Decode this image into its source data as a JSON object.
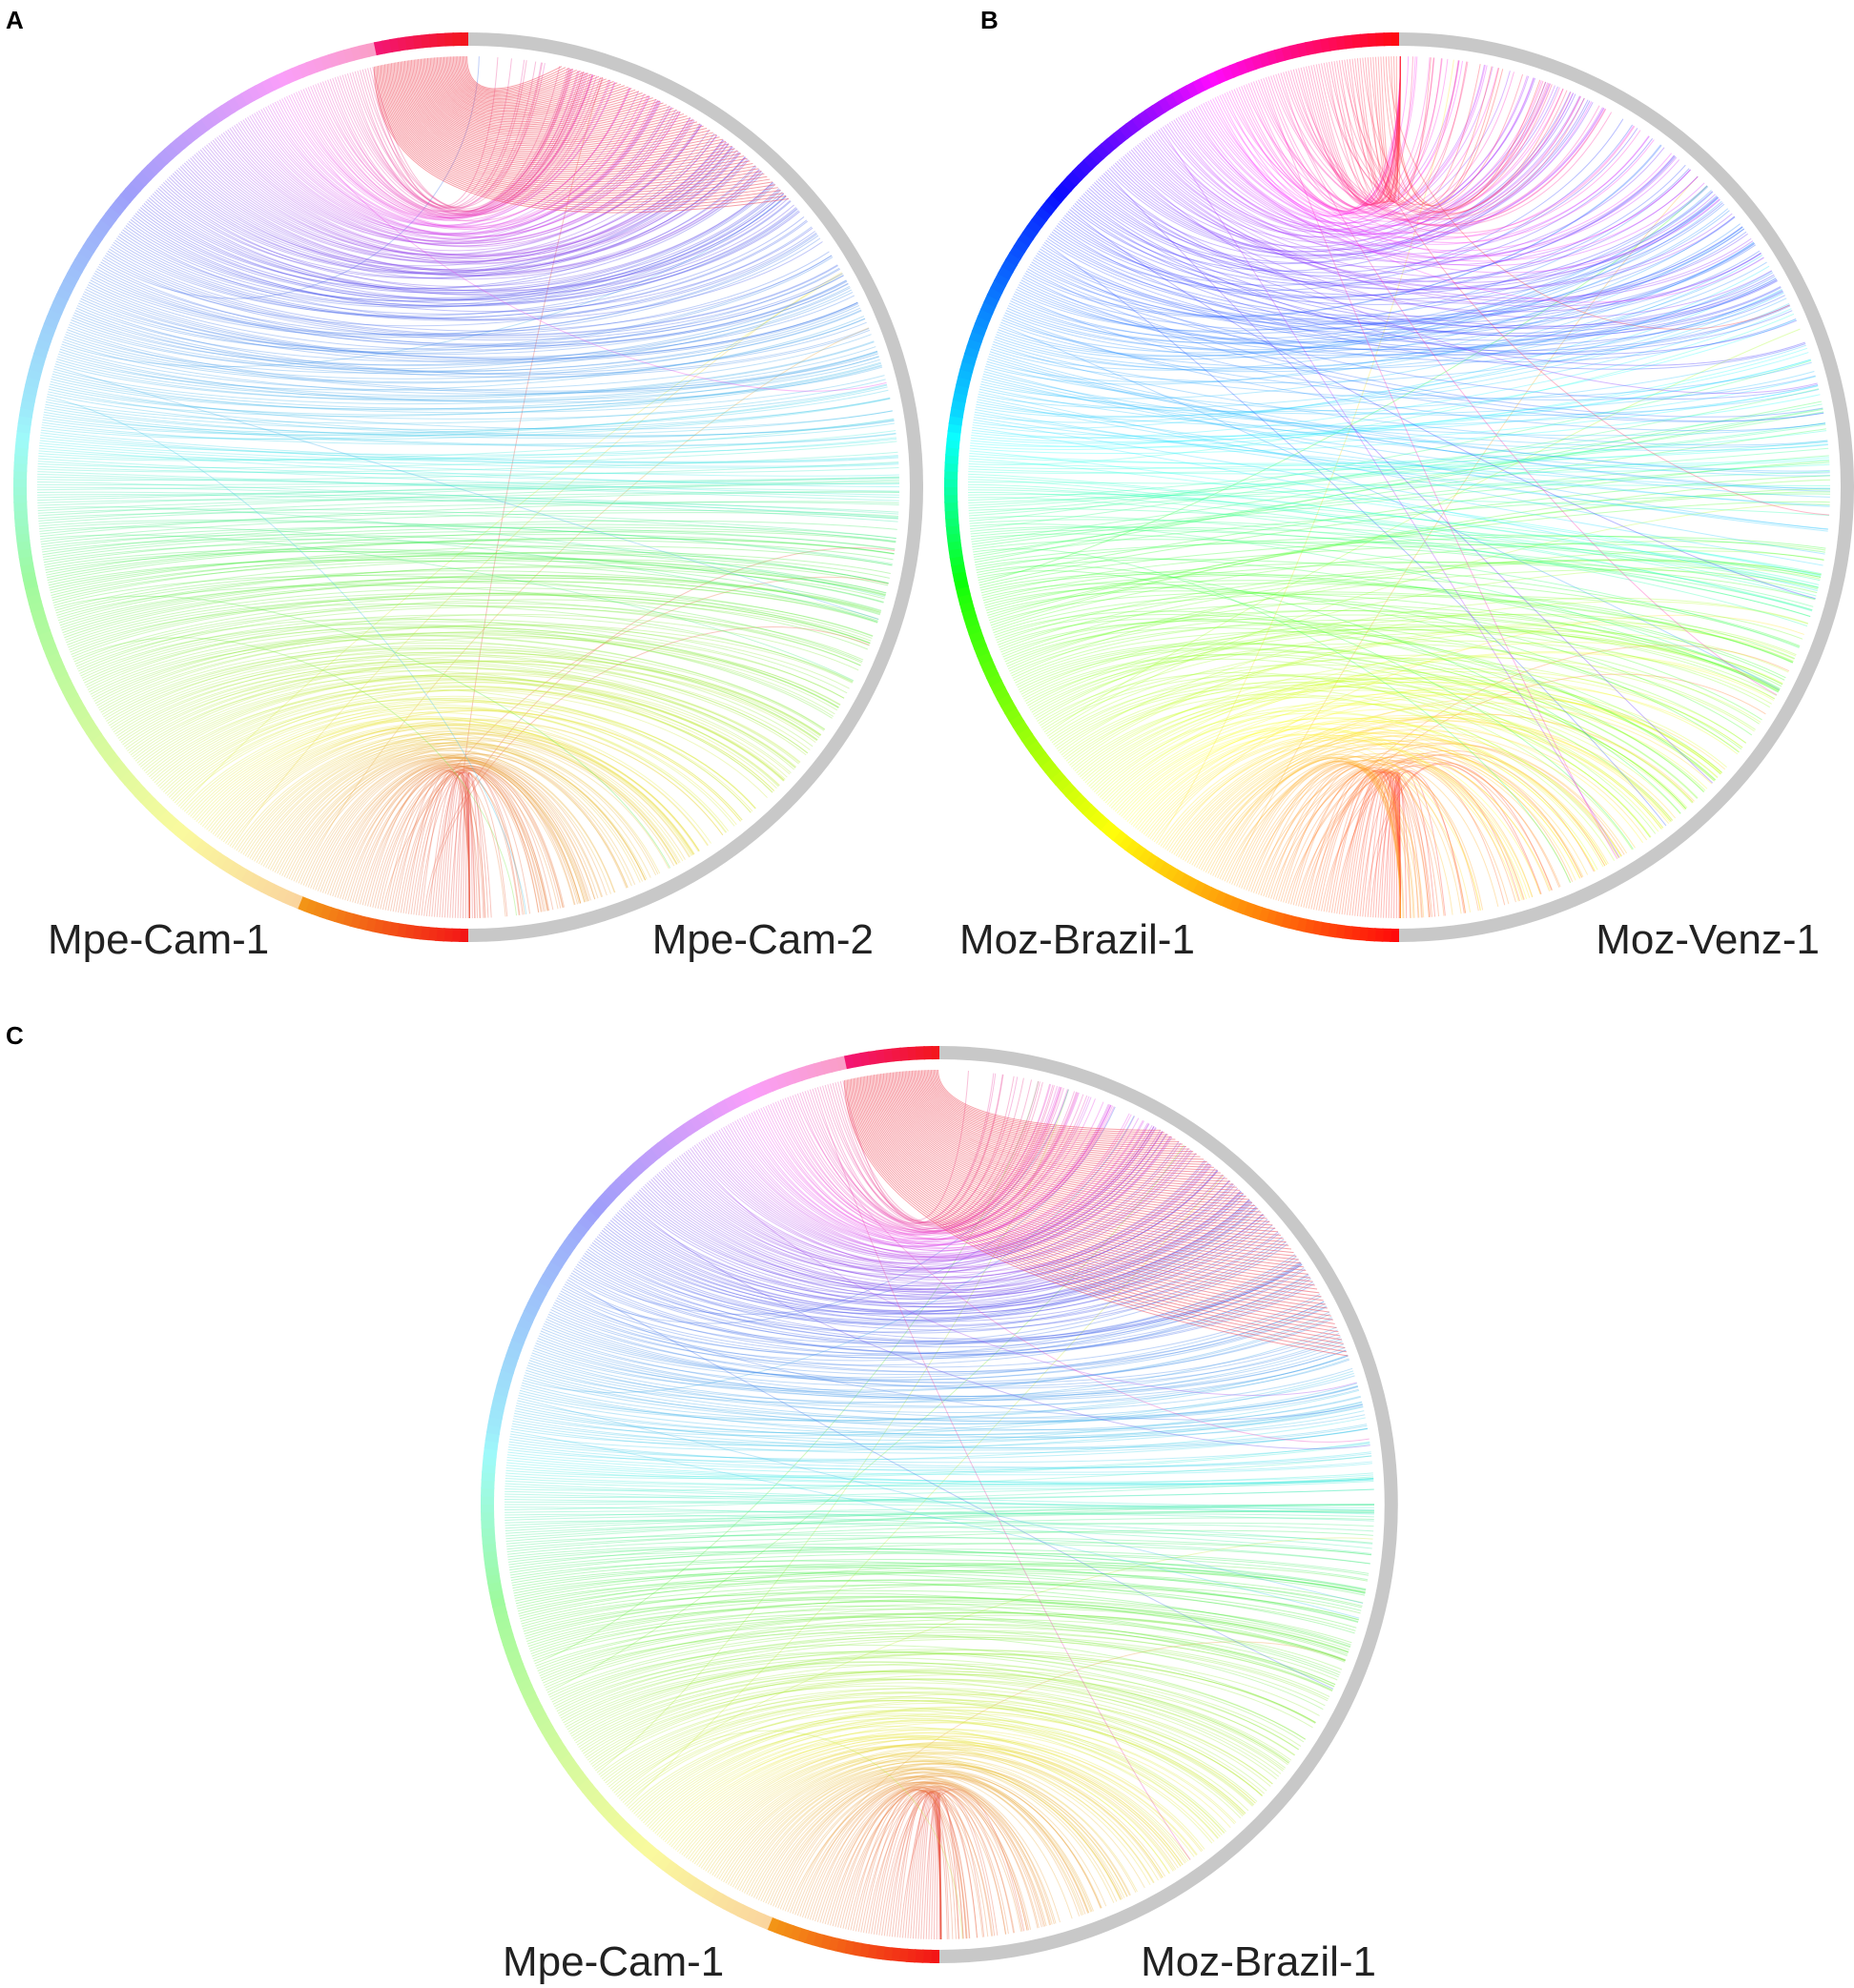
{
  "panels": [
    {
      "label": "A",
      "left_label": "Mpe-Cam-1",
      "right_label": "Mpe-Cam-2"
    },
    {
      "label": "B",
      "left_label": "Moz-Brazil-1",
      "right_label": "Moz-Venz-1"
    },
    {
      "label": "C",
      "left_label": "Mpe-Cam-1",
      "right_label": "Moz-Brazil-1"
    }
  ]
}
